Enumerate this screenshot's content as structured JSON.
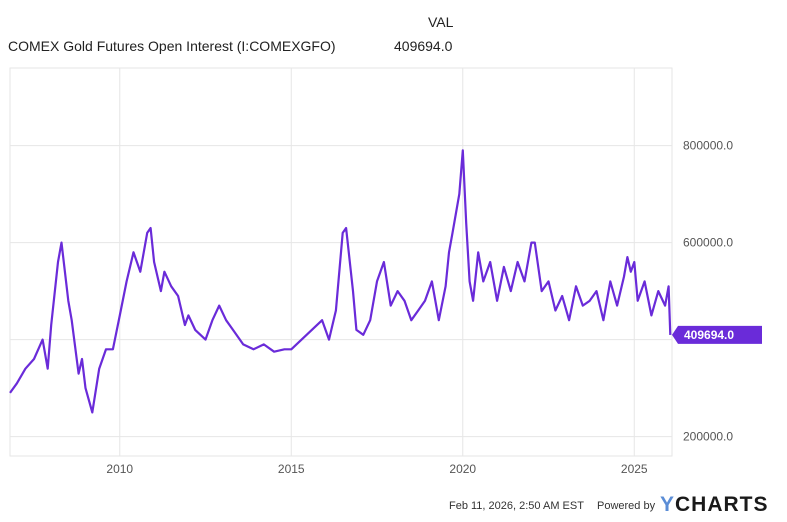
{
  "header": {
    "column_label": "VAL",
    "series_name": "COMEX Gold Futures Open Interest (I:COMEXGFO)",
    "series_value": "409694.0"
  },
  "footer": {
    "timestamp": "Feb 11, 2026, 2:50 AM EST",
    "powered_by": "Powered by",
    "brand_mark": "Y",
    "brand_text": "CHARTS"
  },
  "colors": {
    "line": "#6a2bd9",
    "grid": "#e6e6e6",
    "axis_text": "#555555",
    "badge_text": "#ffffff"
  },
  "chart_data": {
    "type": "line",
    "title": "",
    "xlabel": "",
    "ylabel": "",
    "xlim": [
      2006.8,
      2026.1
    ],
    "ylim": [
      160000,
      960000
    ],
    "x_ticks": [
      2010,
      2015,
      2020,
      2025
    ],
    "x_tick_labels": [
      "2010",
      "2015",
      "2020",
      "2025"
    ],
    "y_ticks": [
      200000,
      400000,
      600000,
      800000
    ],
    "y_tick_labels": [
      "200000.0",
      "",
      "600000.0",
      "800000.0"
    ],
    "grid": true,
    "last_value_label": "409694.0",
    "series": [
      {
        "name": "COMEX Gold Futures Open Interest (I:COMEXGFO)",
        "x": [
          2006.8,
          2007.0,
          2007.25,
          2007.5,
          2007.75,
          2007.9,
          2008.0,
          2008.2,
          2008.3,
          2008.5,
          2008.6,
          2008.8,
          2008.9,
          2009.0,
          2009.2,
          2009.4,
          2009.6,
          2009.8,
          2010.0,
          2010.2,
          2010.4,
          2010.6,
          2010.8,
          2010.9,
          2011.0,
          2011.2,
          2011.3,
          2011.5,
          2011.7,
          2011.9,
          2012.0,
          2012.2,
          2012.5,
          2012.7,
          2012.9,
          2013.1,
          2013.3,
          2013.6,
          2013.9,
          2014.2,
          2014.5,
          2014.8,
          2015.0,
          2015.3,
          2015.6,
          2015.9,
          2016.1,
          2016.3,
          2016.5,
          2016.6,
          2016.8,
          2016.9,
          2017.1,
          2017.3,
          2017.5,
          2017.7,
          2017.9,
          2018.1,
          2018.3,
          2018.5,
          2018.7,
          2018.9,
          2019.1,
          2019.3,
          2019.5,
          2019.6,
          2019.7,
          2019.8,
          2019.9,
          2020.0,
          2020.1,
          2020.2,
          2020.3,
          2020.45,
          2020.6,
          2020.8,
          2021.0,
          2021.2,
          2021.4,
          2021.6,
          2021.8,
          2022.0,
          2022.1,
          2022.3,
          2022.5,
          2022.7,
          2022.9,
          2023.1,
          2023.3,
          2023.5,
          2023.7,
          2023.9,
          2024.1,
          2024.3,
          2024.5,
          2024.7,
          2024.8,
          2024.9,
          2025.0,
          2025.1,
          2025.3,
          2025.5,
          2025.7,
          2025.9,
          2026.0,
          2026.05
        ],
        "y": [
          290000,
          310000,
          340000,
          360000,
          400000,
          340000,
          430000,
          560000,
          600000,
          480000,
          440000,
          330000,
          360000,
          300000,
          250000,
          340000,
          380000,
          380000,
          450000,
          520000,
          580000,
          540000,
          620000,
          630000,
          560000,
          500000,
          540000,
          510000,
          490000,
          430000,
          450000,
          420000,
          400000,
          440000,
          470000,
          440000,
          420000,
          390000,
          380000,
          390000,
          375000,
          380000,
          380000,
          400000,
          420000,
          440000,
          400000,
          460000,
          620000,
          630000,
          500000,
          420000,
          410000,
          440000,
          520000,
          560000,
          470000,
          500000,
          480000,
          440000,
          460000,
          480000,
          520000,
          440000,
          510000,
          580000,
          620000,
          660000,
          700000,
          790000,
          640000,
          520000,
          480000,
          580000,
          520000,
          560000,
          480000,
          550000,
          500000,
          560000,
          520000,
          600000,
          600000,
          500000,
          520000,
          460000,
          490000,
          440000,
          510000,
          470000,
          480000,
          500000,
          440000,
          520000,
          470000,
          530000,
          570000,
          540000,
          560000,
          480000,
          520000,
          450000,
          500000,
          470000,
          510000,
          409694
        ]
      }
    ]
  }
}
